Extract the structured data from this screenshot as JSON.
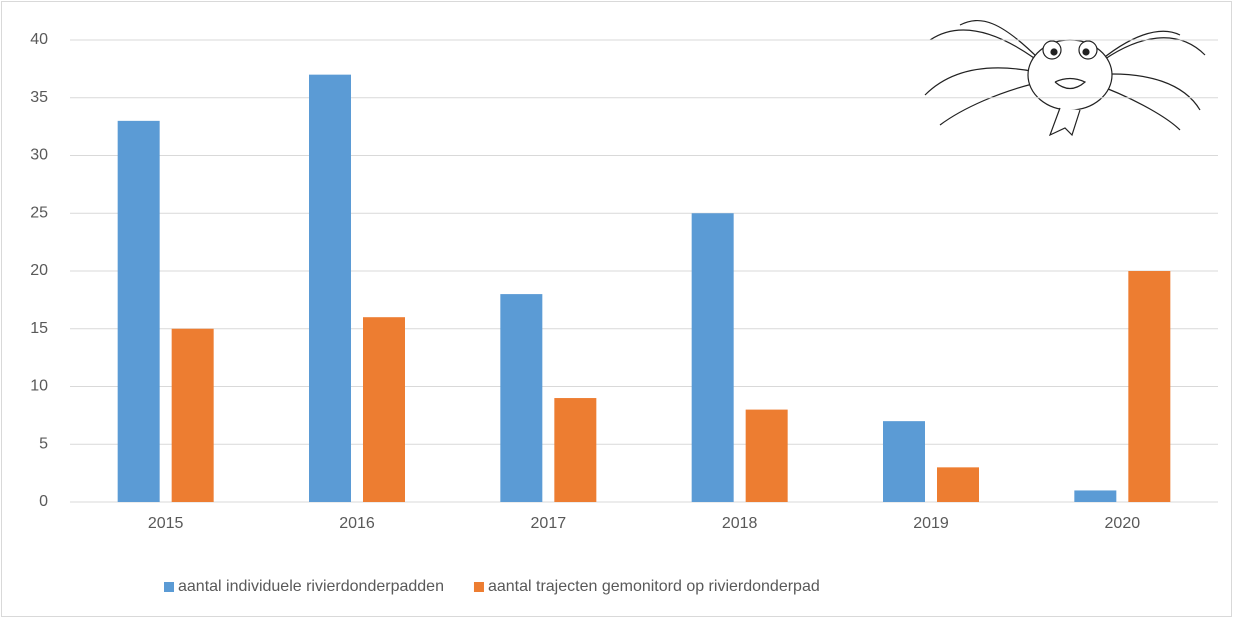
{
  "chart_data": {
    "type": "bar",
    "categories": [
      "2015",
      "2016",
      "2017",
      "2018",
      "2019",
      "2020"
    ],
    "series": [
      {
        "name": "aantal individuele rivierdonderpadden",
        "color": "#5b9bd5",
        "values": [
          33,
          37,
          18,
          25,
          7,
          1
        ]
      },
      {
        "name": "aantal trajecten gemonitord op rivierdonderpad",
        "color": "#ed7d31",
        "values": [
          15,
          16,
          9,
          8,
          3,
          20
        ]
      }
    ],
    "ylim": [
      0,
      40
    ],
    "yticks": [
      0,
      5,
      10,
      15,
      20,
      25,
      30,
      35,
      40
    ],
    "grid": true,
    "legend": "bottom"
  }
}
